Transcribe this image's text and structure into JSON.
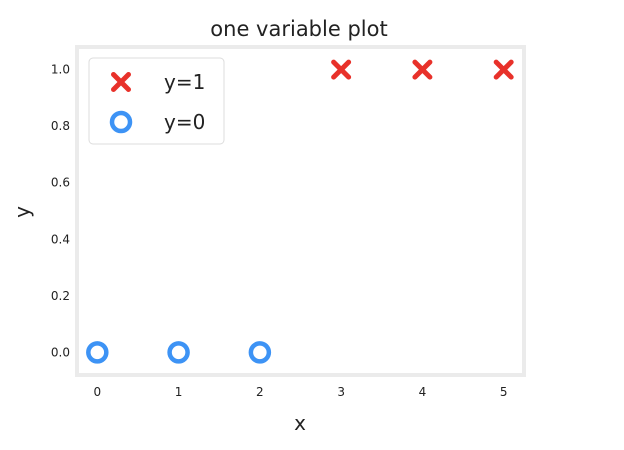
{
  "chart_data": {
    "type": "scatter",
    "title": "one variable plot",
    "xlabel": "x",
    "ylabel": "y",
    "xlim": [
      -0.25,
      5.25
    ],
    "ylim": [
      -0.08,
      1.08
    ],
    "x_ticks": [
      "0",
      "1",
      "2",
      "3",
      "4",
      "5"
    ],
    "y_ticks": [
      "0.0",
      "0.2",
      "0.4",
      "0.6",
      "0.8",
      "1.0"
    ],
    "grid": false,
    "legend_position": "top-left",
    "series": [
      {
        "name": "y=1",
        "marker": "x",
        "color": "#e8312a",
        "x": [
          3,
          4,
          5
        ],
        "y": [
          1,
          1,
          1
        ]
      },
      {
        "name": "y=0",
        "marker": "o",
        "color": "#3d93f5",
        "x": [
          0,
          1,
          2
        ],
        "y": [
          0,
          0,
          0
        ]
      }
    ]
  }
}
